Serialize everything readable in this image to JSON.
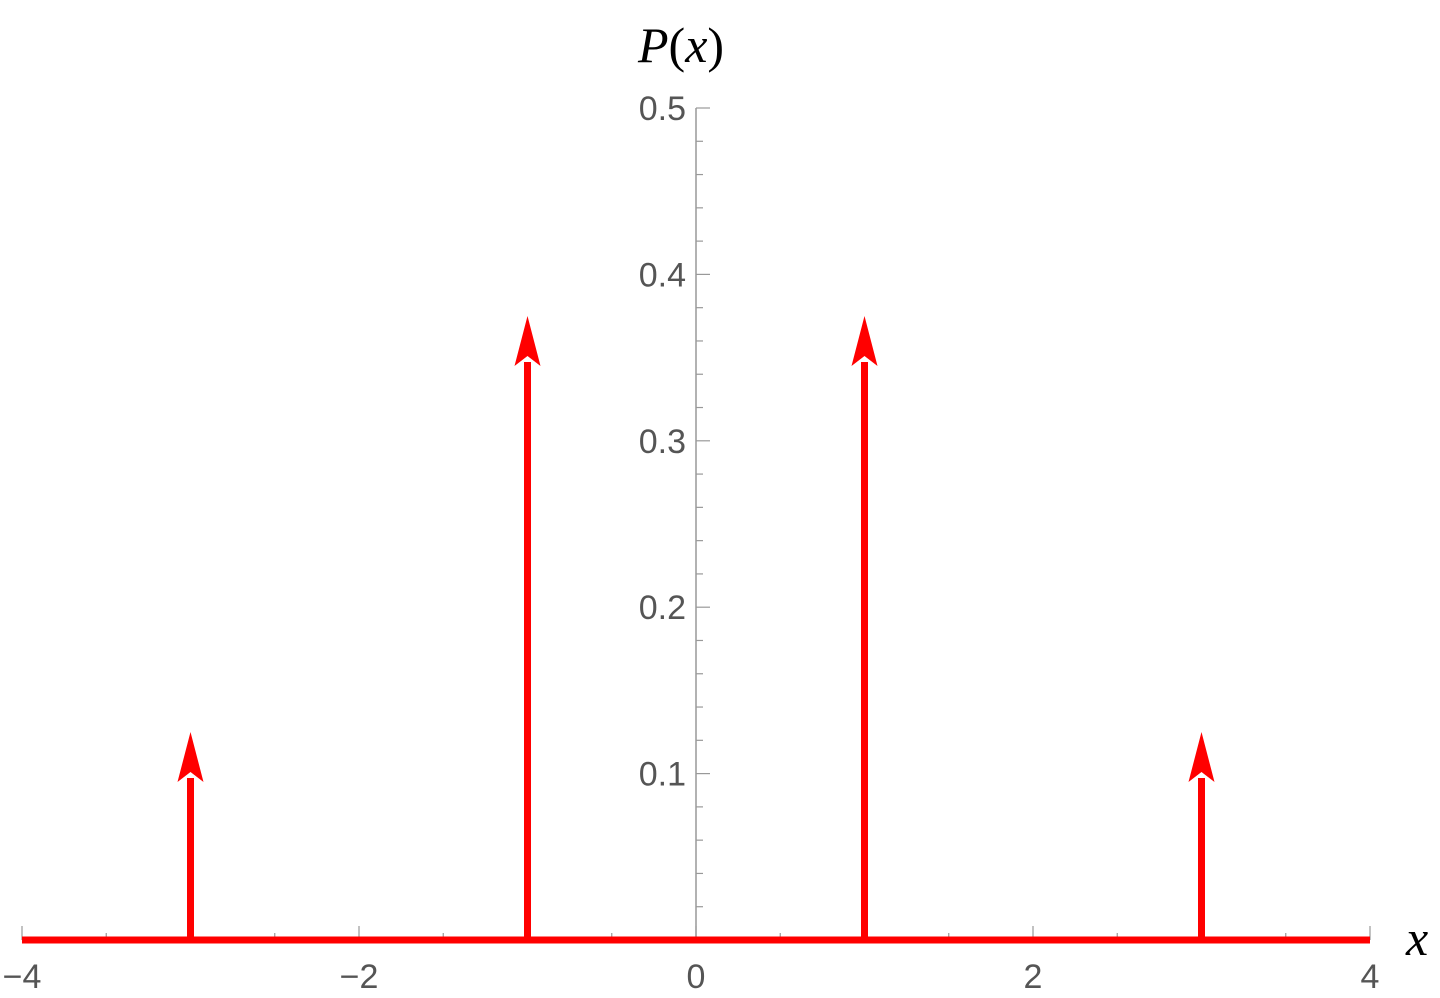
{
  "chart_data": {
    "type": "stem",
    "title": "",
    "xlabel": "x",
    "ylabel": "P(x)",
    "ylabel_parts": {
      "func": "P",
      "open": "(",
      "var": "x",
      "close": ")"
    },
    "xlim": [
      -4,
      4
    ],
    "ylim": [
      0,
      0.5
    ],
    "x_ticks": [
      {
        "value": -4,
        "label": "−4"
      },
      {
        "value": -2,
        "label": "−2"
      },
      {
        "value": 0,
        "label": "0"
      },
      {
        "value": 2,
        "label": "2"
      },
      {
        "value": 4,
        "label": "4"
      }
    ],
    "y_ticks": [
      {
        "value": 0.1,
        "label": "0.1"
      },
      {
        "value": 0.2,
        "label": "0.2"
      },
      {
        "value": 0.3,
        "label": "0.3"
      },
      {
        "value": 0.4,
        "label": "0.4"
      },
      {
        "value": 0.5,
        "label": "0.5"
      }
    ],
    "series": [
      {
        "x": [
          -3,
          -1,
          1,
          3
        ],
        "values": [
          0.125,
          0.375,
          0.375,
          0.125
        ]
      }
    ],
    "baseline": {
      "y": 0,
      "from": -4,
      "to": 4
    },
    "colors": {
      "series": "#ff0000",
      "axis": "#999999",
      "tick_text": "#555555"
    },
    "grid": false,
    "legend": "none",
    "markers": "arrow"
  }
}
